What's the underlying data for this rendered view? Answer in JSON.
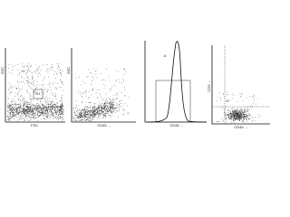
{
  "panels": [
    {
      "x_label": "FSC",
      "y_label": "SSC",
      "gate_label": "R1"
    },
    {
      "x_label": "CD45 →",
      "y_label": "SSC"
    },
    {
      "x_label": "CD45 →",
      "marker_label": "A"
    },
    {
      "x_label": "CD45 →",
      "y_label": "CD3 →",
      "gate_label": "D"
    }
  ]
}
